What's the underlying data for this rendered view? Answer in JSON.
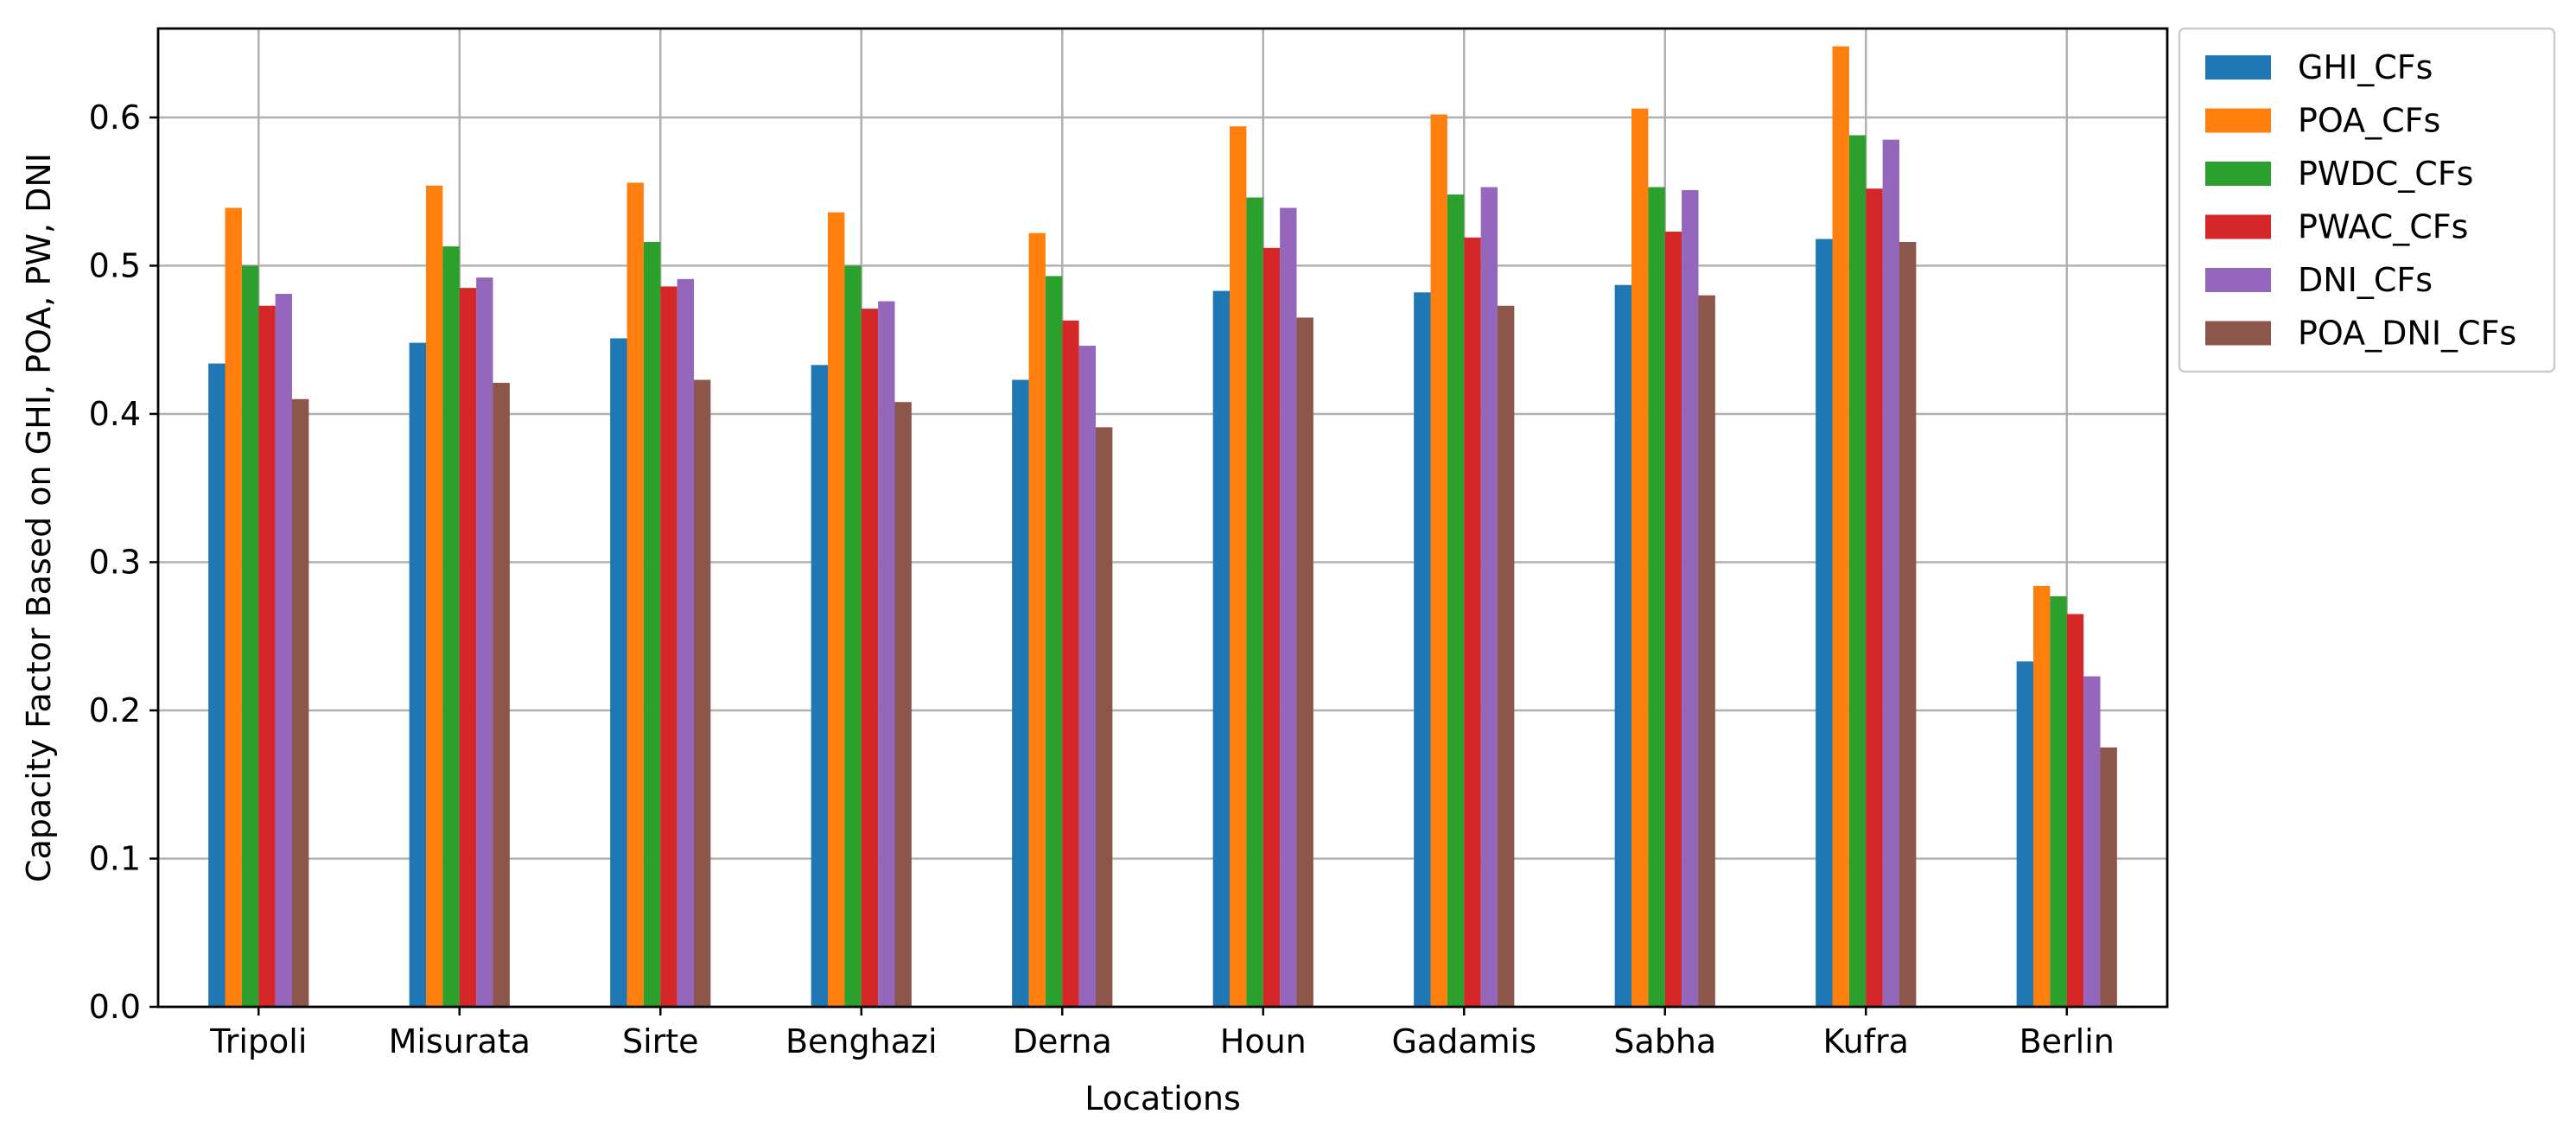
{
  "chart_data": {
    "type": "bar",
    "xlabel": "Locations",
    "ylabel": "Capacity Factor Based on GHI, POA, PW, DNI",
    "ylim": [
      0,
      0.66
    ],
    "yticks": [
      "0.0",
      "0.1",
      "0.2",
      "0.3",
      "0.4",
      "0.5",
      "0.6"
    ],
    "grid": true,
    "legend_position": "outside-top-right",
    "categories": [
      "Tripoli",
      "Misurata",
      "Sirte",
      "Benghazi",
      "Derna",
      "Houn",
      "Gadamis",
      "Sabha",
      "Kufra",
      "Berlin"
    ],
    "series": [
      {
        "name": "GHI_CFs",
        "color": "#1f77b4",
        "values": [
          0.434,
          0.448,
          0.451,
          0.433,
          0.423,
          0.483,
          0.482,
          0.487,
          0.518,
          0.233
        ]
      },
      {
        "name": "POA_CFs",
        "color": "#ff7f0e",
        "values": [
          0.539,
          0.554,
          0.556,
          0.536,
          0.522,
          0.594,
          0.602,
          0.606,
          0.648,
          0.284
        ]
      },
      {
        "name": "PWDC_CFs",
        "color": "#2ca02c",
        "values": [
          0.5,
          0.513,
          0.516,
          0.5,
          0.493,
          0.546,
          0.548,
          0.553,
          0.588,
          0.277
        ]
      },
      {
        "name": "PWAC_CFs",
        "color": "#d62728",
        "values": [
          0.473,
          0.485,
          0.486,
          0.471,
          0.463,
          0.512,
          0.519,
          0.523,
          0.552,
          0.265
        ]
      },
      {
        "name": "DNI_CFs",
        "color": "#9467bd",
        "values": [
          0.481,
          0.492,
          0.491,
          0.476,
          0.446,
          0.539,
          0.553,
          0.551,
          0.585,
          0.223
        ]
      },
      {
        "name": "POA_DNI_CFs",
        "color": "#8c564b",
        "values": [
          0.41,
          0.421,
          0.423,
          0.408,
          0.391,
          0.465,
          0.473,
          0.48,
          0.516,
          0.175
        ]
      }
    ]
  }
}
